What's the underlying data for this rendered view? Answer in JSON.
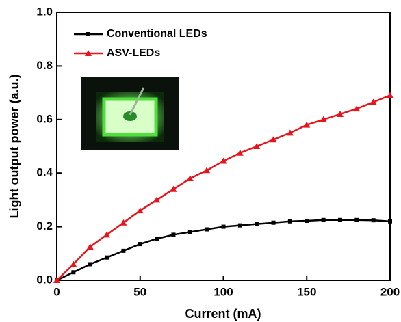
{
  "chart_data": {
    "type": "line",
    "x_label": "Current (mA)",
    "y_label": "Light output power (a.u.)",
    "x": [
      0,
      10,
      20,
      30,
      40,
      50,
      60,
      70,
      80,
      90,
      100,
      110,
      120,
      130,
      140,
      150,
      160,
      170,
      180,
      190,
      200
    ],
    "series": [
      {
        "name": "Conventional LEDs",
        "color": "#000000",
        "marker": "square",
        "values": [
          0,
          0.03,
          0.06,
          0.085,
          0.11,
          0.135,
          0.155,
          0.17,
          0.18,
          0.19,
          0.2,
          0.205,
          0.21,
          0.215,
          0.22,
          0.222,
          0.225,
          0.225,
          0.225,
          0.224,
          0.22
        ]
      },
      {
        "name": "ASV-LEDs",
        "color": "#e8141c",
        "marker": "triangle",
        "values": [
          0,
          0.06,
          0.125,
          0.17,
          0.215,
          0.26,
          0.3,
          0.34,
          0.38,
          0.41,
          0.445,
          0.475,
          0.5,
          0.525,
          0.55,
          0.58,
          0.6,
          0.62,
          0.64,
          0.665,
          0.69
        ]
      }
    ],
    "xlim": [
      0,
      200
    ],
    "xticks": [
      0,
      50,
      100,
      150,
      200
    ],
    "ylim": [
      0,
      1
    ],
    "yticks": [
      {
        "value": 0,
        "label": "0.0"
      },
      0.2,
      0.4,
      0.6,
      0.8,
      {
        "value": 1,
        "label": "1.0"
      }
    ],
    "legend": "upper-left"
  }
}
